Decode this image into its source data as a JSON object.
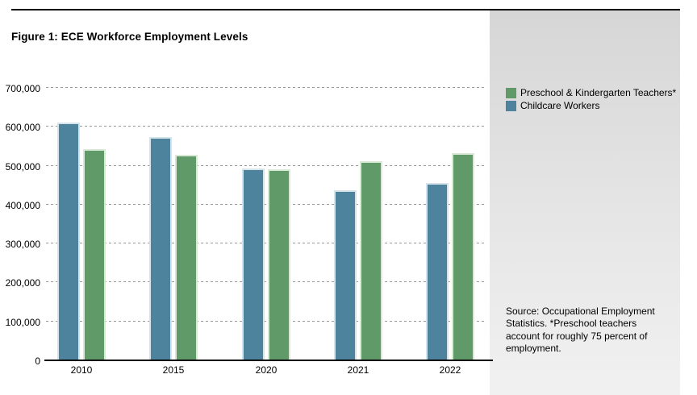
{
  "figure": {
    "title": "Figure 1: ECE Workforce Employment Levels"
  },
  "legend": {
    "items": [
      {
        "label": "Preschool & Kindergarten Teachers*",
        "color": "#5f9a68",
        "border_color": "#d9e9d6"
      },
      {
        "label": "Childcare Workers",
        "color": "#4d839c",
        "border_color": "#d6e4ea"
      }
    ]
  },
  "source_note": "Source: Occupational Employment Statistics. *Preschool teachers account for roughly 75 percent of employment.",
  "colors": {
    "preschool_green": "#5f9a68",
    "childcare_blue": "#4d839c",
    "gridline_gray": "#999999",
    "panel_gray_top": "#d6d6d6",
    "panel_gray_bottom": "#f1f1f1",
    "axis_black": "#000000"
  },
  "chart_data": {
    "type": "bar",
    "title": "Figure 1: ECE Workforce Employment Levels",
    "categories": [
      "2010",
      "2015",
      "2020",
      "2021",
      "2022"
    ],
    "series": [
      {
        "name": "Childcare Workers",
        "color": "#4d839c",
        "border_color": "#d6e4ea",
        "values": [
          611000,
          573000,
          493000,
          438000,
          456000
        ]
      },
      {
        "name": "Preschool & Kindergarten Teachers*",
        "color": "#5f9a68",
        "border_color": "#d9e9d6",
        "values": [
          543000,
          528000,
          490000,
          512000,
          533000
        ]
      }
    ],
    "xlabel": "",
    "ylabel": "",
    "ylim": [
      0,
      700000
    ],
    "ytick_interval": 100000,
    "ytick_labels": [
      "0",
      "100,000",
      "200,000",
      "300,000",
      "400,000",
      "500,000",
      "600,000",
      "700,000"
    ],
    "grid": "horizontal-dashed",
    "legend_position": "right-panel"
  }
}
